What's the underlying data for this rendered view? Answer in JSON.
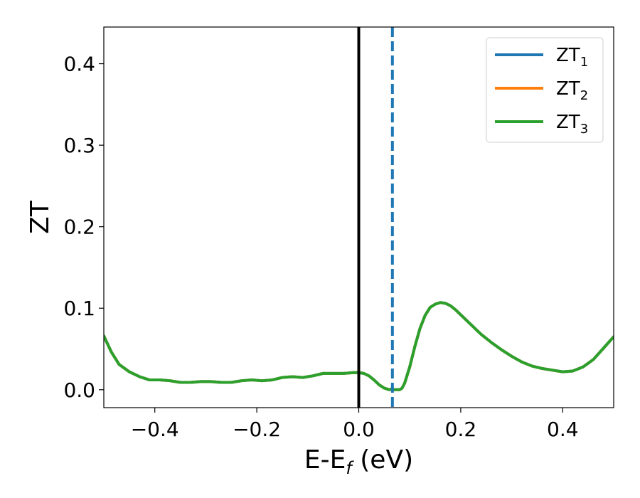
{
  "chart_data": {
    "type": "line",
    "title": "",
    "xlabel": "E-E",
    "xlabel_sub": "f",
    "xlabel_unit": " (eV)",
    "ylabel": "ZT",
    "xlim": [
      -0.5,
      0.5
    ],
    "ylim": [
      -0.022,
      0.445
    ],
    "xticks": [
      -0.4,
      -0.2,
      0.0,
      0.2,
      0.4
    ],
    "xtick_labels": [
      "−0.4",
      "−0.2",
      "0.0",
      "0.2",
      "0.4"
    ],
    "yticks": [
      0.0,
      0.1,
      0.2,
      0.3,
      0.4
    ],
    "ytick_labels": [
      "0.0",
      "0.1",
      "0.2",
      "0.3",
      "0.4"
    ],
    "grid": false,
    "legend_position": "top-right",
    "series": [
      {
        "name": "ZT",
        "name_sub": "1",
        "color": "#1f77b4",
        "x": [
          -0.5,
          -0.485,
          -0.47,
          -0.45,
          -0.43,
          -0.41,
          -0.39,
          -0.37,
          -0.35,
          -0.33,
          -0.31,
          -0.29,
          -0.27,
          -0.25,
          -0.23,
          -0.21,
          -0.19,
          -0.17,
          -0.15,
          -0.13,
          -0.11,
          -0.09,
          -0.07,
          -0.05,
          -0.03,
          -0.01,
          0.0,
          0.01,
          0.02,
          0.03,
          0.04,
          0.05,
          0.06,
          0.065,
          0.07,
          0.075,
          0.08,
          0.085,
          0.09,
          0.1,
          0.11,
          0.12,
          0.13,
          0.14,
          0.15,
          0.16,
          0.17,
          0.18,
          0.19,
          0.2,
          0.22,
          0.24,
          0.26,
          0.28,
          0.3,
          0.32,
          0.34,
          0.36,
          0.38,
          0.4,
          0.42,
          0.44,
          0.46,
          0.48,
          0.5
        ],
        "y": [
          0.066,
          0.046,
          0.031,
          0.022,
          0.016,
          0.012,
          0.012,
          0.011,
          0.009,
          0.009,
          0.01,
          0.01,
          0.009,
          0.009,
          0.011,
          0.012,
          0.011,
          0.012,
          0.015,
          0.016,
          0.015,
          0.017,
          0.02,
          0.02,
          0.02,
          0.021,
          0.021,
          0.02,
          0.017,
          0.012,
          0.006,
          0.002,
          0.0,
          0.001,
          0.0,
          0.0,
          0.0,
          0.002,
          0.008,
          0.028,
          0.053,
          0.075,
          0.091,
          0.101,
          0.105,
          0.107,
          0.106,
          0.103,
          0.098,
          0.092,
          0.08,
          0.068,
          0.058,
          0.049,
          0.041,
          0.034,
          0.029,
          0.026,
          0.024,
          0.022,
          0.023,
          0.028,
          0.037,
          0.051,
          0.065
        ]
      },
      {
        "name": "ZT",
        "name_sub": "2",
        "color": "#ff7f0e",
        "x": [
          -0.5,
          -0.485,
          -0.47,
          -0.45,
          -0.43,
          -0.41,
          -0.39,
          -0.37,
          -0.35,
          -0.33,
          -0.31,
          -0.29,
          -0.27,
          -0.25,
          -0.23,
          -0.21,
          -0.19,
          -0.17,
          -0.15,
          -0.13,
          -0.11,
          -0.09,
          -0.07,
          -0.05,
          -0.03,
          -0.01,
          0.0,
          0.01,
          0.02,
          0.03,
          0.04,
          0.05,
          0.06,
          0.065,
          0.07,
          0.075,
          0.08,
          0.085,
          0.09,
          0.1,
          0.11,
          0.12,
          0.13,
          0.14,
          0.15,
          0.16,
          0.17,
          0.18,
          0.19,
          0.2,
          0.22,
          0.24,
          0.26,
          0.28,
          0.3,
          0.32,
          0.34,
          0.36,
          0.38,
          0.4,
          0.42,
          0.44,
          0.46,
          0.48,
          0.5
        ],
        "y": [
          0.066,
          0.046,
          0.031,
          0.022,
          0.016,
          0.012,
          0.012,
          0.011,
          0.009,
          0.009,
          0.01,
          0.01,
          0.009,
          0.009,
          0.011,
          0.012,
          0.011,
          0.012,
          0.015,
          0.016,
          0.015,
          0.017,
          0.02,
          0.02,
          0.02,
          0.021,
          0.021,
          0.02,
          0.017,
          0.012,
          0.006,
          0.002,
          0.0,
          0.001,
          0.0,
          0.0,
          0.0,
          0.002,
          0.008,
          0.028,
          0.053,
          0.075,
          0.091,
          0.101,
          0.105,
          0.107,
          0.106,
          0.103,
          0.098,
          0.092,
          0.08,
          0.068,
          0.058,
          0.049,
          0.041,
          0.034,
          0.029,
          0.026,
          0.024,
          0.022,
          0.023,
          0.028,
          0.037,
          0.051,
          0.065
        ]
      },
      {
        "name": "ZT",
        "name_sub": "3",
        "color": "#2ca02c",
        "x": [
          -0.5,
          -0.485,
          -0.47,
          -0.45,
          -0.43,
          -0.41,
          -0.39,
          -0.37,
          -0.35,
          -0.33,
          -0.31,
          -0.29,
          -0.27,
          -0.25,
          -0.23,
          -0.21,
          -0.19,
          -0.17,
          -0.15,
          -0.13,
          -0.11,
          -0.09,
          -0.07,
          -0.05,
          -0.03,
          -0.01,
          0.0,
          0.01,
          0.02,
          0.03,
          0.04,
          0.05,
          0.06,
          0.065,
          0.07,
          0.075,
          0.08,
          0.085,
          0.09,
          0.1,
          0.11,
          0.12,
          0.13,
          0.14,
          0.15,
          0.16,
          0.17,
          0.18,
          0.19,
          0.2,
          0.22,
          0.24,
          0.26,
          0.28,
          0.3,
          0.32,
          0.34,
          0.36,
          0.38,
          0.4,
          0.42,
          0.44,
          0.46,
          0.48,
          0.5
        ],
        "y": [
          0.066,
          0.046,
          0.031,
          0.022,
          0.016,
          0.012,
          0.012,
          0.011,
          0.009,
          0.009,
          0.01,
          0.01,
          0.009,
          0.009,
          0.011,
          0.012,
          0.011,
          0.012,
          0.015,
          0.016,
          0.015,
          0.017,
          0.02,
          0.02,
          0.02,
          0.021,
          0.021,
          0.02,
          0.017,
          0.012,
          0.006,
          0.002,
          0.0,
          0.001,
          0.0,
          0.0,
          0.0,
          0.002,
          0.008,
          0.028,
          0.053,
          0.075,
          0.091,
          0.101,
          0.105,
          0.107,
          0.106,
          0.103,
          0.098,
          0.092,
          0.08,
          0.068,
          0.058,
          0.049,
          0.041,
          0.034,
          0.029,
          0.026,
          0.024,
          0.022,
          0.023,
          0.028,
          0.037,
          0.051,
          0.065
        ]
      }
    ],
    "vlines": [
      {
        "x": 0.0,
        "color": "#000000",
        "style": "solid"
      },
      {
        "x": 0.066,
        "color": "#1f77b4",
        "style": "dashed"
      }
    ]
  }
}
